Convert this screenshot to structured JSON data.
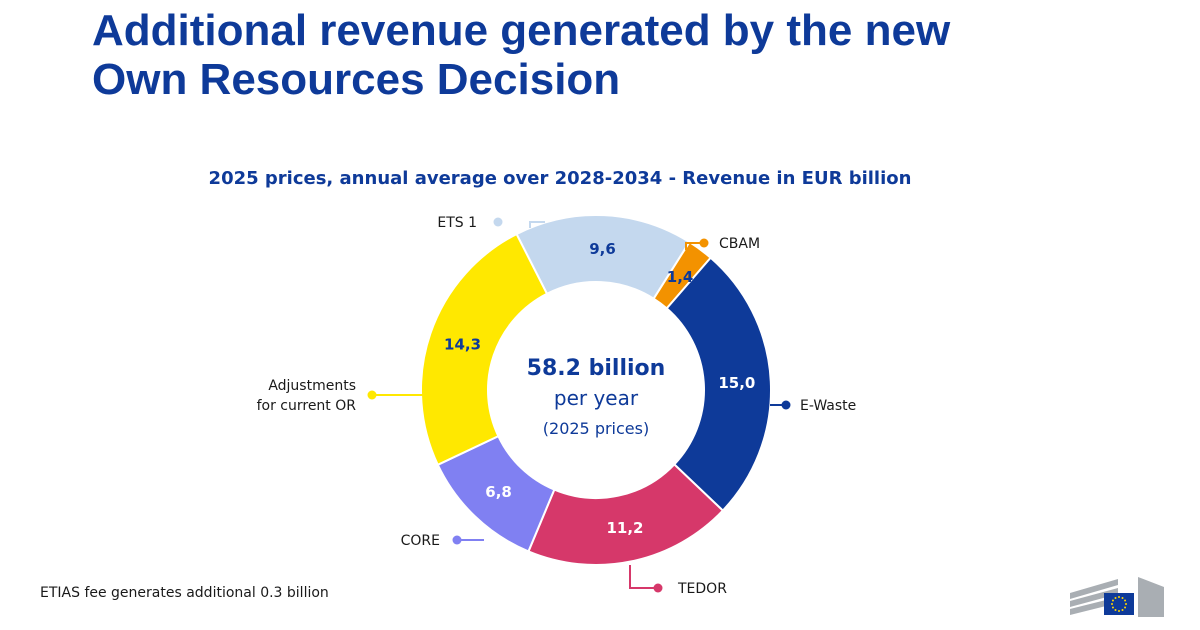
{
  "page": {
    "title_lines": [
      "Additional revenue generated by the new",
      "Own Resources Decision"
    ],
    "footnote": "ETIAS fee generates additional 0.3 billion"
  },
  "chart_data": {
    "type": "pie",
    "title": "2025 prices, annual average over 2028-2034 - Revenue in EUR billion",
    "center_text": {
      "main": "58.2 billion",
      "sub": "per year",
      "note": "(2025 prices)"
    },
    "series": [
      {
        "name": "ETS 1",
        "value": 9.6,
        "display": "9,6",
        "color": "#C4D8EE",
        "label_color": "#0E3A99"
      },
      {
        "name": "CBAM",
        "value": 1.4,
        "display": "1,4",
        "color": "#F39200",
        "label_color": "#0E3A99"
      },
      {
        "name": "E-Waste",
        "value": 15.0,
        "display": "15,0",
        "color": "#0E3A99",
        "label_color": "#ffffff"
      },
      {
        "name": "TEDOR",
        "value": 11.2,
        "display": "11,2",
        "color": "#D6386A",
        "label_color": "#ffffff"
      },
      {
        "name": "CORE",
        "value": 6.8,
        "display": "6,8",
        "color": "#8080F2",
        "label_color": "#ffffff"
      },
      {
        "name": "Adjustments for current OR",
        "name_lines": [
          "Adjustments",
          "for current OR"
        ],
        "value": 14.3,
        "display": "14,3",
        "color": "#FFE800",
        "label_color": "#0E3A99"
      }
    ],
    "legend": "callouts around the donut"
  }
}
